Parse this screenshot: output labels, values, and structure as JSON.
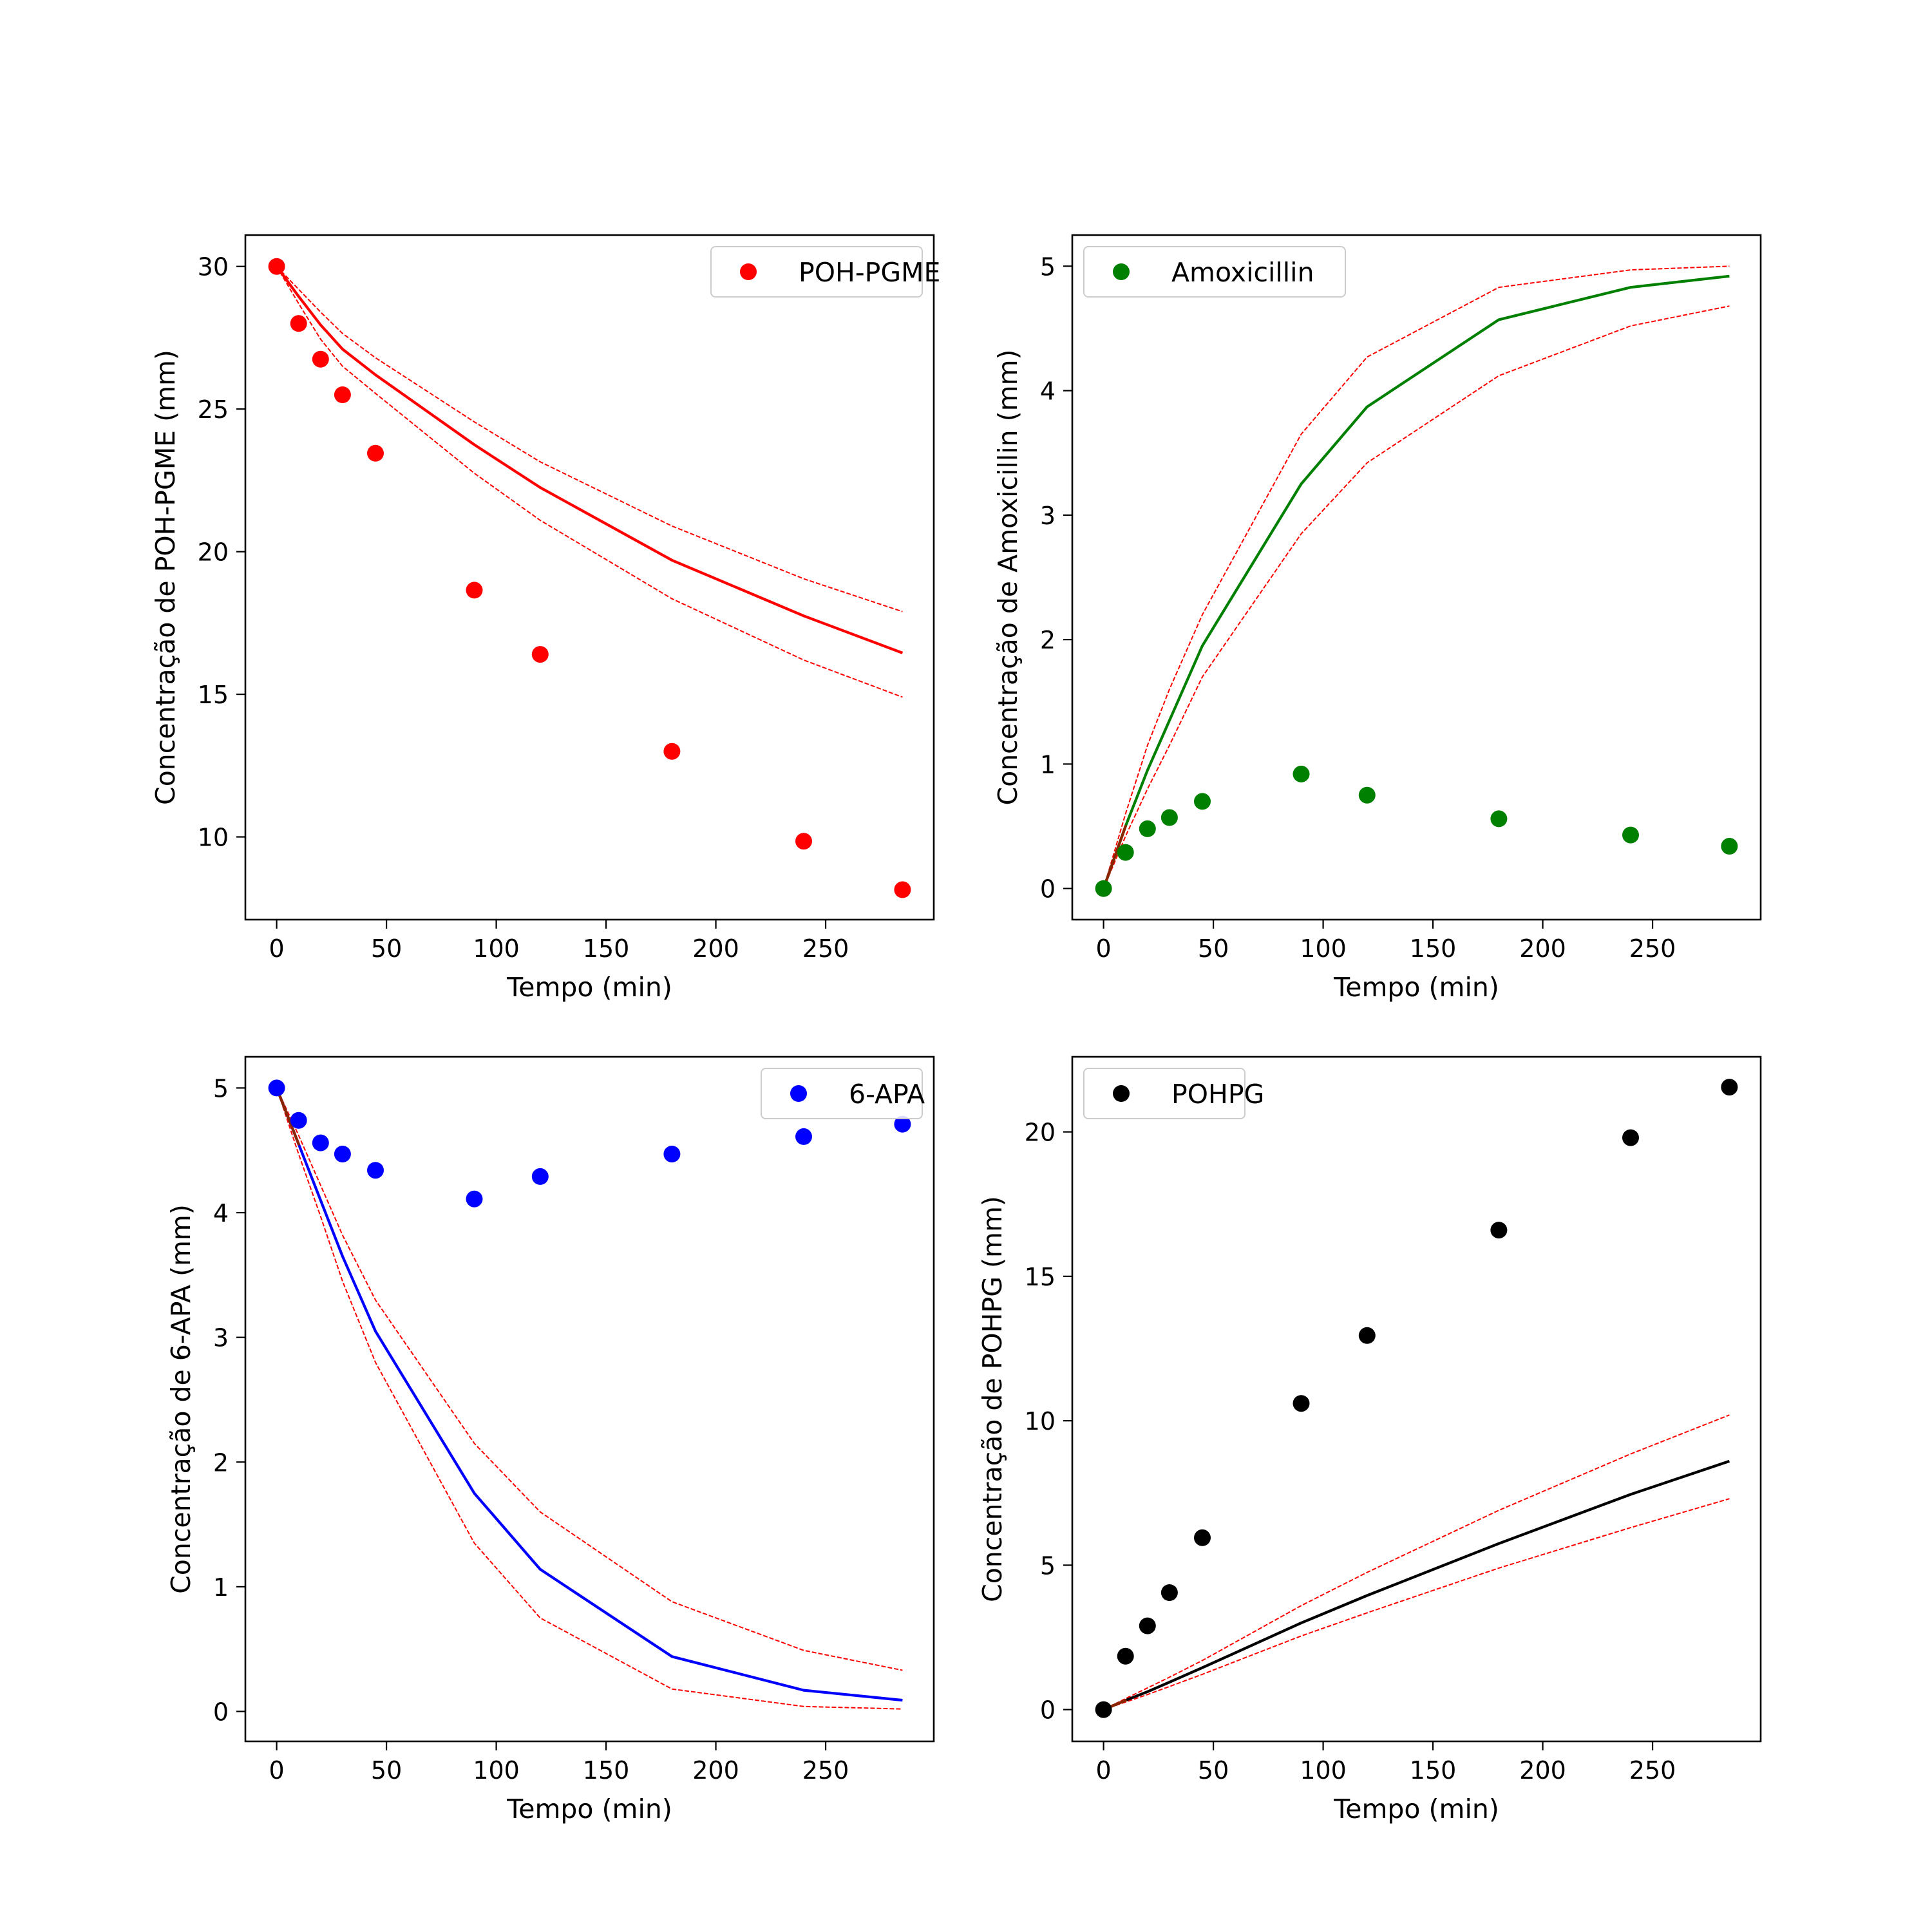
{
  "chart_data": [
    {
      "type": "scatter",
      "xlabel": "Tempo (min)",
      "ylabel": "Concentração de POH-PGME (mm)",
      "xlim": [
        -14.25,
        299.25
      ],
      "ylim": [
        7.1,
        31.1
      ],
      "xticks": [
        0,
        50,
        100,
        150,
        200,
        250
      ],
      "yticks": [
        10,
        15,
        20,
        25,
        30
      ],
      "grid": false,
      "legend": {
        "position": "upper right",
        "label": "POH-PGME"
      },
      "colors": {
        "points": "#ff0000",
        "fit": "#ff0000",
        "band": "#ff0000"
      },
      "x": [
        0,
        10,
        20,
        30,
        45,
        90,
        120,
        180,
        240,
        285
      ],
      "series": [
        {
          "name": "POH-PGME",
          "kind": "points",
          "values": [
            30.0,
            28.0,
            26.75,
            25.5,
            23.45,
            18.65,
            16.4,
            13.0,
            9.85,
            8.15
          ]
        },
        {
          "kind": "line",
          "values": [
            30.0,
            28.95,
            27.95,
            27.1,
            26.2,
            23.75,
            22.25,
            19.7,
            17.75,
            16.45
          ]
        },
        {
          "kind": "dashed",
          "values": [
            30.0,
            29.2,
            28.4,
            27.65,
            26.8,
            24.55,
            23.15,
            20.9,
            19.05,
            17.9
          ]
        },
        {
          "kind": "dashed",
          "values": [
            30.0,
            28.7,
            27.45,
            26.5,
            25.55,
            22.75,
            21.1,
            18.35,
            16.2,
            14.9
          ]
        }
      ]
    },
    {
      "type": "scatter",
      "xlabel": "Tempo (min)",
      "ylabel": "Concentração de Amoxicillin (mm)",
      "xlim": [
        -14.25,
        299.25
      ],
      "ylim": [
        -0.25,
        5.25
      ],
      "xticks": [
        0,
        50,
        100,
        150,
        200,
        250
      ],
      "yticks": [
        0,
        1,
        2,
        3,
        4,
        5
      ],
      "grid": false,
      "legend": {
        "position": "upper left",
        "label": "Amoxicillin"
      },
      "colors": {
        "points": "#008000",
        "fit": "#008000",
        "band": "#ff0000",
        "first_segment": "#8b2500"
      },
      "x": [
        0,
        10,
        20,
        30,
        45,
        90,
        120,
        180,
        240,
        285
      ],
      "series": [
        {
          "name": "Amoxicillin",
          "kind": "points",
          "values": [
            0.0,
            0.29,
            0.48,
            0.57,
            0.7,
            0.92,
            0.75,
            0.56,
            0.43,
            0.34
          ]
        },
        {
          "kind": "line",
          "values": [
            0.0,
            0.5,
            0.95,
            1.35,
            1.95,
            3.25,
            3.87,
            4.57,
            4.83,
            4.92
          ]
        },
        {
          "kind": "dashed",
          "values": [
            0.0,
            0.6,
            1.15,
            1.6,
            2.2,
            3.65,
            4.27,
            4.83,
            4.97,
            5.0
          ]
        },
        {
          "kind": "dashed",
          "values": [
            0.0,
            0.42,
            0.8,
            1.15,
            1.7,
            2.85,
            3.42,
            4.12,
            4.52,
            4.68
          ]
        }
      ]
    },
    {
      "type": "scatter",
      "xlabel": "Tempo (min)",
      "ylabel": "Concentração de 6-APA (mm)",
      "xlim": [
        -14.25,
        299.25
      ],
      "ylim": [
        -0.24,
        5.25
      ],
      "xticks": [
        0,
        50,
        100,
        150,
        200,
        250
      ],
      "yticks": [
        0,
        1,
        2,
        3,
        4,
        5
      ],
      "grid": false,
      "legend": {
        "position": "upper right",
        "label": "6-APA"
      },
      "colors": {
        "points": "#0000ff",
        "fit": "#0000ff",
        "band": "#ff0000",
        "first_segment": "#8b2500"
      },
      "x": [
        0,
        10,
        20,
        30,
        45,
        90,
        120,
        180,
        240,
        285
      ],
      "series": [
        {
          "name": "6-APA",
          "kind": "points",
          "values": [
            5.0,
            4.74,
            4.56,
            4.47,
            4.34,
            4.11,
            4.29,
            4.47,
            4.61,
            4.71
          ]
        },
        {
          "kind": "line",
          "values": [
            5.0,
            4.55,
            4.1,
            3.65,
            3.05,
            1.75,
            1.14,
            0.44,
            0.17,
            0.09
          ]
        },
        {
          "kind": "dashed",
          "values": [
            5.0,
            4.62,
            4.22,
            3.82,
            3.3,
            2.15,
            1.6,
            0.88,
            0.49,
            0.33
          ]
        },
        {
          "kind": "dashed",
          "values": [
            5.0,
            4.47,
            3.97,
            3.45,
            2.8,
            1.35,
            0.75,
            0.18,
            0.04,
            0.02
          ]
        }
      ]
    },
    {
      "type": "scatter",
      "xlabel": "Tempo (min)",
      "ylabel": "Concentração de POHPG (mm)",
      "xlim": [
        -14.25,
        299.25
      ],
      "ylim": [
        -1.1,
        22.6
      ],
      "xticks": [
        0,
        50,
        100,
        150,
        200,
        250
      ],
      "yticks": [
        0,
        5,
        10,
        15,
        20
      ],
      "grid": false,
      "legend": {
        "position": "upper left",
        "label": "POHPG"
      },
      "colors": {
        "points": "#000000",
        "fit": "#000000",
        "band": "#ff0000",
        "first_segment": "#8b2500"
      },
      "x": [
        0,
        10,
        20,
        30,
        45,
        90,
        120,
        180,
        240,
        285
      ],
      "series": [
        {
          "name": "POHPG",
          "kind": "points",
          "values": [
            0.0,
            1.85,
            2.9,
            4.05,
            5.95,
            10.6,
            12.95,
            16.6,
            19.8,
            21.55
          ]
        },
        {
          "kind": "line",
          "values": [
            0.0,
            0.32,
            0.62,
            0.95,
            1.45,
            3.0,
            3.95,
            5.75,
            7.45,
            8.6
          ]
        },
        {
          "kind": "dashed",
          "values": [
            0.0,
            0.38,
            0.75,
            1.12,
            1.7,
            3.6,
            4.75,
            6.9,
            8.85,
            10.2
          ]
        },
        {
          "kind": "dashed",
          "values": [
            0.0,
            0.26,
            0.52,
            0.8,
            1.22,
            2.55,
            3.35,
            4.9,
            6.3,
            7.3
          ]
        }
      ]
    }
  ]
}
